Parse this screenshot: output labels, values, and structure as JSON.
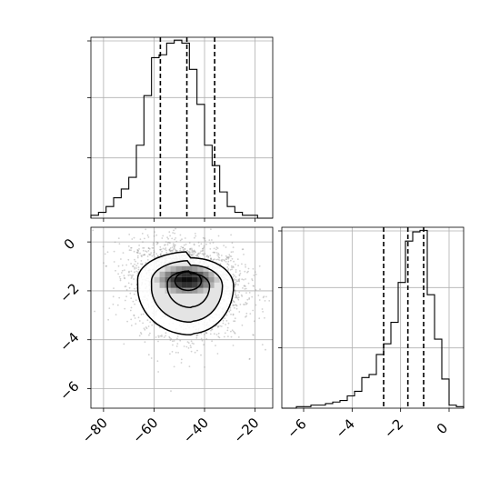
{
  "chart_data": [
    {
      "panel": "top-left",
      "type": "histogram",
      "variable": "x",
      "xlim": [
        -85,
        -13
      ],
      "bin_edges": [
        -85,
        -82,
        -79,
        -76,
        -73,
        -70,
        -67,
        -64,
        -61,
        -58,
        -55,
        -52,
        -49,
        -46,
        -43,
        -40,
        -37,
        -34,
        -31,
        -28,
        -25,
        -22,
        -19,
        -16,
        -13
      ],
      "counts": [
        1,
        2,
        4,
        7,
        10,
        14,
        25,
        42,
        55,
        56,
        60,
        61,
        60,
        51,
        39,
        25,
        18,
        9,
        4,
        2,
        1,
        1,
        0,
        0
      ],
      "ymax": 62,
      "quantile_lines": [
        -57.5,
        -47,
        -36
      ],
      "grid": true,
      "tick_labels": false
    },
    {
      "panel": "bottom-left",
      "type": "2d-histogram-contour",
      "variables": [
        "x",
        "y"
      ],
      "xlim": [
        -85,
        -13
      ],
      "ylim": [
        -6.8,
        0.6
      ],
      "x_ticks": [
        -80,
        -60,
        -40,
        -20
      ],
      "y_ticks": [
        0,
        -2,
        -4,
        -6
      ],
      "x_tick_labels": [
        "−80",
        "−60",
        "−40",
        "−20"
      ],
      "y_tick_labels": [
        "0",
        "−2",
        "−4",
        "−6"
      ],
      "center": [
        -47,
        -1.55
      ],
      "grid": true
    },
    {
      "panel": "bottom-right",
      "type": "histogram",
      "variable": "y",
      "xlim": [
        -6.9,
        0.6
      ],
      "bin_edges": [
        -6.9,
        -6.6,
        -6.3,
        -6.0,
        -5.7,
        -5.4,
        -5.1,
        -4.8,
        -4.5,
        -4.2,
        -3.9,
        -3.6,
        -3.3,
        -3.0,
        -2.7,
        -2.4,
        -2.1,
        -1.8,
        -1.5,
        -1.2,
        -0.9,
        -0.6,
        -0.3,
        0.0,
        0.3,
        0.6
      ],
      "counts": [
        0,
        0,
        1,
        1,
        2,
        2,
        3,
        4,
        5,
        8,
        11,
        20,
        22,
        35,
        42,
        56,
        82,
        109,
        115,
        116,
        74,
        45,
        19,
        2,
        1
      ],
      "ymax": 118,
      "quantile_lines": [
        -2.7,
        -1.7,
        -1.05
      ],
      "x_ticks": [
        -6,
        -4,
        -2,
        0
      ],
      "x_tick_labels": [
        "−6",
        "−4",
        "−2",
        "0"
      ],
      "grid": true
    }
  ]
}
